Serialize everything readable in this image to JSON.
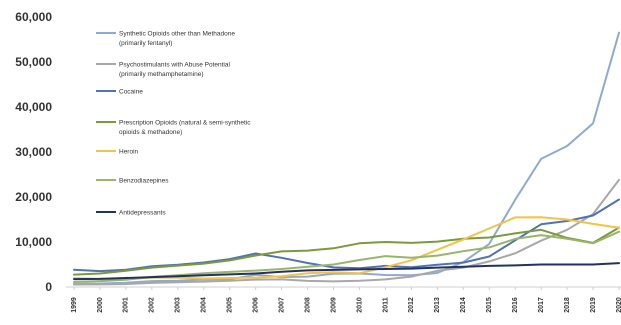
{
  "chart_data": {
    "type": "line",
    "x": [
      "1999",
      "2000",
      "2001",
      "2002",
      "2003",
      "2004",
      "2005",
      "2006",
      "2007",
      "2008",
      "2009",
      "2010",
      "2011",
      "2012",
      "2013",
      "2014",
      "2015",
      "2016",
      "2017",
      "2018",
      "2019",
      "2020"
    ],
    "ylim": [
      0,
      60000
    ],
    "yticks": [
      "0",
      "10,000",
      "20,000",
      "30,000",
      "40,000",
      "50,000",
      "60,000"
    ],
    "grid": false,
    "legend_position": "top-left",
    "series": [
      {
        "name_lines": [
          "Synthetic Opioids other than Methadone",
          "(primarily fentanyl)"
        ],
        "color": "#8faad2",
        "values": [
          730,
          780,
          960,
          1300,
          1400,
          1660,
          1740,
          2710,
          2210,
          2300,
          2950,
          3010,
          2670,
          2630,
          3110,
          5540,
          9580,
          19410,
          28470,
          31340,
          36360,
          56520
        ]
      },
      {
        "name_lines": [
          "Psychostimulants with Abuse Potential",
          "(primarily methamphetamine)"
        ],
        "color": "#a8a8a8",
        "values": [
          550,
          580,
          650,
          900,
          1050,
          1200,
          1400,
          1650,
          1700,
          1350,
          1250,
          1400,
          1700,
          2300,
          3600,
          4300,
          5700,
          7500,
          10300,
          12700,
          16200,
          23800
        ]
      },
      {
        "name_lines": [
          "Cocaine"
        ],
        "color": "#4f73b5",
        "values": [
          3820,
          3540,
          3830,
          4600,
          4960,
          5450,
          6210,
          7450,
          6500,
          5330,
          4350,
          4180,
          4680,
          4400,
          4940,
          5420,
          6780,
          10380,
          13940,
          14670,
          15880,
          19450
        ]
      },
      {
        "name_lines": [
          "Prescription Opioids (natural & semi-synthetic",
          "opioids & methadone)"
        ],
        "color": "#7a9a3c",
        "values": [
          2750,
          3000,
          3600,
          4300,
          4750,
          5200,
          5900,
          7000,
          7900,
          8100,
          8600,
          9700,
          10000,
          9800,
          10100,
          10700,
          11000,
          11900,
          12700,
          10900,
          9800,
          13200
        ]
      },
      {
        "name_lines": [
          "Heroin"
        ],
        "color": "#f5c242",
        "values": [
          1960,
          1840,
          1780,
          2090,
          2080,
          1880,
          2010,
          2090,
          2400,
          3040,
          3280,
          3040,
          4400,
          5930,
          8260,
          10570,
          12990,
          15470,
          15480,
          14990,
          14020,
          13170
        ]
      },
      {
        "name_lines": [
          "Benzodiazepines"
        ],
        "color": "#98b56a",
        "values": [
          1140,
          1300,
          1600,
          2250,
          2600,
          3070,
          3350,
          3650,
          4000,
          4500,
          5000,
          6000,
          6870,
          6520,
          6970,
          7950,
          8790,
          10680,
          11540,
          10720,
          9710,
          12290
        ]
      },
      {
        "name_lines": [
          "Antidepressants"
        ],
        "color": "#23325e",
        "values": [
          1750,
          1800,
          2000,
          2200,
          2400,
          2600,
          2800,
          3000,
          3400,
          3700,
          3800,
          3900,
          4000,
          4100,
          4300,
          4500,
          4700,
          4800,
          5000,
          5000,
          5000,
          5300
        ]
      }
    ]
  }
}
